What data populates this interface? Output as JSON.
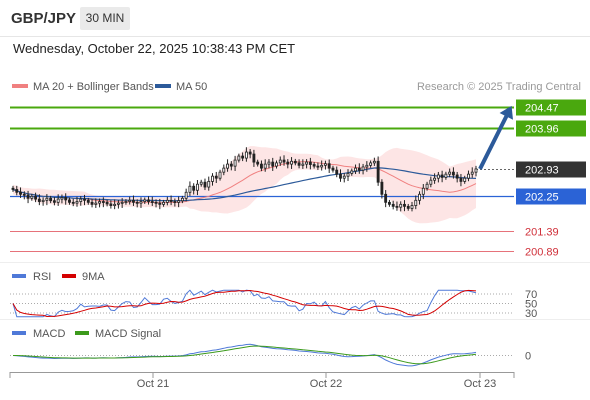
{
  "header": {
    "pair": "GBP/JPY",
    "timeframe": "30 MIN",
    "datetime": "Wednesday, October 22, 2025 10:38:43 PM CET"
  },
  "legend": {
    "ma20_label": "MA 20 + Bollinger Bands",
    "ma50_label": "MA 50",
    "copyright": "Research © 2025 Trading Central",
    "ma20_color": "#f08080",
    "ma50_color": "#2c5a9a"
  },
  "rsi": {
    "label": "RSI",
    "ma_label": "9MA",
    "rsi_color": "#4f79d8",
    "ma_color": "#d40000",
    "levels": [
      "70",
      "50",
      "30"
    ]
  },
  "macd": {
    "label": "MACD",
    "signal_label": "MACD Signal",
    "macd_color": "#4f79d8",
    "signal_color": "#3c9a1c",
    "zero_label": "0"
  },
  "x_axis": {
    "ticks": [
      "Oct 21",
      "Oct 22",
      "Oct 23"
    ]
  },
  "chart_data": {
    "type": "candlestick",
    "ylim": [
      200.75,
      204.6
    ],
    "levels": [
      {
        "value": 204.47,
        "label": "204.47",
        "kind": "resistance",
        "color": "#4aa80e"
      },
      {
        "value": 203.96,
        "label": "203.96",
        "kind": "resistance",
        "color": "#4aa80e"
      },
      {
        "value": 202.93,
        "label": "202.93",
        "kind": "current",
        "color": "#333333"
      },
      {
        "value": 202.25,
        "label": "202.25",
        "kind": "pivot",
        "color": "#2b63d6"
      },
      {
        "value": 201.39,
        "label": "201.39",
        "kind": "support",
        "color": "#e0505a"
      },
      {
        "value": 200.89,
        "label": "200.89",
        "kind": "support",
        "color": "#e0505a"
      }
    ],
    "forecast_arrow": {
      "from": 202.93,
      "to": 204.47
    },
    "candles_close": [
      202.42,
      202.35,
      202.3,
      202.28,
      202.2,
      202.25,
      202.18,
      202.12,
      202.15,
      202.2,
      202.14,
      202.1,
      202.18,
      202.22,
      202.16,
      202.1,
      202.08,
      202.12,
      202.18,
      202.15,
      202.1,
      202.05,
      202.08,
      202.12,
      202.1,
      202.06,
      202.02,
      202.05,
      202.08,
      202.1,
      202.12,
      202.15,
      202.1,
      202.08,
      202.12,
      202.16,
      202.12,
      202.1,
      202.08,
      202.05,
      202.1,
      202.15,
      202.12,
      202.1,
      202.14,
      202.2,
      202.35,
      202.5,
      202.4,
      202.55,
      202.6,
      202.48,
      202.62,
      202.75,
      202.7,
      202.85,
      202.95,
      203.05,
      203.0,
      203.15,
      203.25,
      203.2,
      203.35,
      203.3,
      203.1,
      203.05,
      202.95,
      203.05,
      203.1,
      203.0,
      203.08,
      203.15,
      203.1,
      203.05,
      203.12,
      203.08,
      203.02,
      203.05,
      203.1,
      203.04,
      203.0,
      202.98,
      203.02,
      203.06,
      202.95,
      202.9,
      202.8,
      202.7,
      202.75,
      202.82,
      202.88,
      202.95,
      202.9,
      202.98,
      203.02,
      203.08,
      203.12,
      202.6,
      202.3,
      202.1,
      202.05,
      202.0,
      201.98,
      202.05,
      202.0,
      201.95,
      202.02,
      202.15,
      202.3,
      202.45,
      202.55,
      202.65,
      202.7,
      202.78,
      202.72,
      202.8,
      202.85,
      202.78,
      202.7,
      202.62,
      202.7,
      202.8,
      202.85,
      202.93
    ],
    "rsi_range": [
      30,
      70
    ],
    "macd_zero": 0
  }
}
